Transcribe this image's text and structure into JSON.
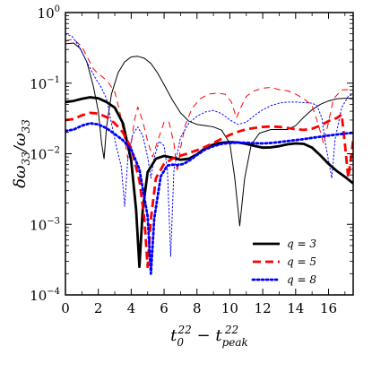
{
  "chart_data": {
    "type": "line",
    "xlabel": "t_0^{22} − t_{peak}^{22}",
    "ylabel": "δω_{33}/ω_{33}",
    "xlim": [
      0,
      17.5
    ],
    "ylim": [
      0.0001,
      1
    ],
    "yscale": "log",
    "xticks": [
      0,
      2,
      4,
      6,
      8,
      10,
      12,
      14,
      16
    ],
    "xtick_labels": [
      "0",
      "2",
      "4",
      "6",
      "8",
      "10",
      "12",
      "14",
      "16"
    ],
    "yticks": [
      0.0001,
      0.001,
      0.01,
      0.1,
      1
    ],
    "ytick_base": [
      "10",
      "10",
      "10",
      "10",
      "10"
    ],
    "ytick_exp": [
      "−4",
      "−3",
      "−2",
      "−1",
      "0"
    ],
    "grid": false,
    "legend": "lower-right",
    "series": [
      {
        "name": "q = 3",
        "color": "#000000",
        "dash": "solid",
        "width": "thick",
        "points": [
          [
            0,
            0.054
          ],
          [
            0.5,
            0.056
          ],
          [
            1,
            0.06
          ],
          [
            1.5,
            0.063
          ],
          [
            2,
            0.061
          ],
          [
            2.5,
            0.054
          ],
          [
            3,
            0.045
          ],
          [
            3.5,
            0.027
          ],
          [
            4,
            0.008
          ],
          [
            4.3,
            0.0016
          ],
          [
            4.5,
            0.00025
          ],
          [
            4.7,
            0.0016
          ],
          [
            5,
            0.0055
          ],
          [
            5.5,
            0.0085
          ],
          [
            6,
            0.0093
          ],
          [
            6.5,
            0.0088
          ],
          [
            7,
            0.0082
          ],
          [
            7.5,
            0.0085
          ],
          [
            8,
            0.0098
          ],
          [
            8.5,
            0.012
          ],
          [
            9,
            0.0135
          ],
          [
            9.5,
            0.0143
          ],
          [
            10,
            0.0146
          ],
          [
            10.5,
            0.0144
          ],
          [
            11,
            0.0138
          ],
          [
            11.5,
            0.0129
          ],
          [
            12,
            0.0122
          ],
          [
            12.5,
            0.0123
          ],
          [
            13,
            0.0128
          ],
          [
            13.5,
            0.0136
          ],
          [
            14,
            0.014
          ],
          [
            14.5,
            0.0138
          ],
          [
            15,
            0.0122
          ],
          [
            15.5,
            0.0095
          ],
          [
            16,
            0.0072
          ],
          [
            16.5,
            0.0057
          ],
          [
            17,
            0.0047
          ],
          [
            17.5,
            0.0038
          ]
        ]
      },
      {
        "name": "q = 5",
        "color": "#ff0000",
        "dash": "dashed",
        "width": "thick",
        "points": [
          [
            0,
            0.03
          ],
          [
            0.5,
            0.031
          ],
          [
            1,
            0.035
          ],
          [
            1.5,
            0.038
          ],
          [
            2,
            0.037
          ],
          [
            2.5,
            0.033
          ],
          [
            3,
            0.027
          ],
          [
            3.5,
            0.02
          ],
          [
            4,
            0.012
          ],
          [
            4.5,
            0.0042
          ],
          [
            4.8,
            0.0012
          ],
          [
            5,
            0.00025
          ],
          [
            5.2,
            0.0012
          ],
          [
            5.5,
            0.0045
          ],
          [
            6,
            0.0072
          ],
          [
            6.5,
            0.0085
          ],
          [
            7,
            0.0094
          ],
          [
            7.5,
            0.0102
          ],
          [
            8,
            0.0112
          ],
          [
            8.5,
            0.0125
          ],
          [
            9,
            0.0142
          ],
          [
            9.5,
            0.0163
          ],
          [
            10,
            0.0185
          ],
          [
            10.5,
            0.0205
          ],
          [
            11,
            0.0222
          ],
          [
            11.5,
            0.0232
          ],
          [
            12,
            0.024
          ],
          [
            12.5,
            0.0243
          ],
          [
            13,
            0.024
          ],
          [
            13.5,
            0.0232
          ],
          [
            14,
            0.0222
          ],
          [
            14.5,
            0.0218
          ],
          [
            15,
            0.0226
          ],
          [
            15.5,
            0.025
          ],
          [
            16,
            0.029
          ],
          [
            16.5,
            0.032
          ],
          [
            16.8,
            0.036
          ],
          [
            17,
            0.0135
          ],
          [
            17.2,
            0.0046
          ],
          [
            17.4,
            0.01
          ],
          [
            17.5,
            0.016
          ]
        ]
      },
      {
        "name": "q = 8",
        "color": "#0000ff",
        "dash": "dotted",
        "width": "thick",
        "points": [
          [
            0,
            0.021
          ],
          [
            0.5,
            0.022
          ],
          [
            1,
            0.025
          ],
          [
            1.5,
            0.027
          ],
          [
            2,
            0.026
          ],
          [
            2.5,
            0.023
          ],
          [
            3,
            0.019
          ],
          [
            3.5,
            0.0155
          ],
          [
            4,
            0.0115
          ],
          [
            4.5,
            0.006
          ],
          [
            5,
            0.0013
          ],
          [
            5.2,
            0.0002
          ],
          [
            5.4,
            0.0012
          ],
          [
            5.8,
            0.0048
          ],
          [
            6.2,
            0.0068
          ],
          [
            6.5,
            0.007
          ],
          [
            6.8,
            0.0069
          ],
          [
            7.2,
            0.0072
          ],
          [
            7.6,
            0.0082
          ],
          [
            8,
            0.0096
          ],
          [
            8.5,
            0.0115
          ],
          [
            9,
            0.0128
          ],
          [
            9.5,
            0.0138
          ],
          [
            10,
            0.0142
          ],
          [
            10.5,
            0.0144
          ],
          [
            11,
            0.0143
          ],
          [
            11.5,
            0.0141
          ],
          [
            12,
            0.014
          ],
          [
            12.5,
            0.0142
          ],
          [
            13,
            0.0146
          ],
          [
            13.5,
            0.0151
          ],
          [
            14,
            0.0156
          ],
          [
            14.5,
            0.0161
          ],
          [
            15,
            0.0168
          ],
          [
            15.5,
            0.0174
          ],
          [
            16,
            0.0181
          ],
          [
            16.5,
            0.0187
          ],
          [
            17,
            0.0193
          ],
          [
            17.5,
            0.0198
          ]
        ]
      },
      {
        "color": "#000000",
        "dash": "solid",
        "width": "thin",
        "points": [
          [
            0,
            0.36
          ],
          [
            0.5,
            0.37
          ],
          [
            0.9,
            0.31
          ],
          [
            1.3,
            0.2
          ],
          [
            1.7,
            0.09
          ],
          [
            2,
            0.04
          ],
          [
            2.2,
            0.014
          ],
          [
            2.35,
            0.0085
          ],
          [
            2.5,
            0.024
          ],
          [
            2.8,
            0.07
          ],
          [
            3.2,
            0.14
          ],
          [
            3.6,
            0.2
          ],
          [
            4,
            0.235
          ],
          [
            4.4,
            0.24
          ],
          [
            4.8,
            0.225
          ],
          [
            5.2,
            0.19
          ],
          [
            5.6,
            0.14
          ],
          [
            6,
            0.095
          ],
          [
            6.5,
            0.058
          ],
          [
            7,
            0.038
          ],
          [
            7.5,
            0.029
          ],
          [
            8,
            0.026
          ],
          [
            8.5,
            0.025
          ],
          [
            9,
            0.024
          ],
          [
            9.5,
            0.0215
          ],
          [
            10,
            0.014
          ],
          [
            10.3,
            0.0045
          ],
          [
            10.6,
            0.00095
          ],
          [
            10.9,
            0.0045
          ],
          [
            11.3,
            0.0135
          ],
          [
            11.8,
            0.0195
          ],
          [
            12.5,
            0.022
          ],
          [
            13,
            0.022
          ],
          [
            13.5,
            0.022
          ],
          [
            14,
            0.025
          ],
          [
            14.5,
            0.033
          ],
          [
            15,
            0.042
          ],
          [
            15.5,
            0.05
          ],
          [
            16,
            0.056
          ],
          [
            16.5,
            0.06
          ],
          [
            17,
            0.061
          ],
          [
            17.5,
            0.061
          ]
        ]
      },
      {
        "color": "#ff0000",
        "dash": "dashed",
        "width": "thin",
        "points": [
          [
            0,
            0.4
          ],
          [
            0.5,
            0.42
          ],
          [
            1,
            0.33
          ],
          [
            1.3,
            0.24
          ],
          [
            1.7,
            0.16
          ],
          [
            2,
            0.135
          ],
          [
            2.3,
            0.12
          ],
          [
            2.6,
            0.103
          ],
          [
            3,
            0.075
          ],
          [
            3.3,
            0.04
          ],
          [
            3.6,
            0.016
          ],
          [
            3.8,
            0.0085
          ],
          [
            4,
            0.014
          ],
          [
            4.2,
            0.03
          ],
          [
            4.4,
            0.046
          ],
          [
            4.7,
            0.029
          ],
          [
            5,
            0.015
          ],
          [
            5.3,
            0.009
          ],
          [
            5.6,
            0.015
          ],
          [
            6,
            0.028
          ],
          [
            6.3,
            0.028
          ],
          [
            6.6,
            0.014
          ],
          [
            6.8,
            0.0055
          ],
          [
            7,
            0.012
          ],
          [
            7.3,
            0.026
          ],
          [
            7.7,
            0.044
          ],
          [
            8.2,
            0.06
          ],
          [
            8.7,
            0.07
          ],
          [
            9.2,
            0.072
          ],
          [
            9.7,
            0.07
          ],
          [
            10.1,
            0.054
          ],
          [
            10.4,
            0.032
          ],
          [
            10.6,
            0.042
          ],
          [
            11,
            0.065
          ],
          [
            11.5,
            0.078
          ],
          [
            12,
            0.085
          ],
          [
            12.5,
            0.087
          ],
          [
            13,
            0.081
          ],
          [
            13.5,
            0.078
          ],
          [
            14,
            0.07
          ],
          [
            14.5,
            0.06
          ],
          [
            15,
            0.048
          ],
          [
            15.4,
            0.025
          ],
          [
            15.7,
            0.014
          ],
          [
            16,
            0.028
          ],
          [
            16.3,
            0.06
          ],
          [
            16.8,
            0.08
          ],
          [
            17.2,
            0.081
          ],
          [
            17.5,
            0.078
          ]
        ]
      },
      {
        "color": "#0000ff",
        "dash": "dotted",
        "width": "thin",
        "points": [
          [
            0,
            0.5
          ],
          [
            0.4,
            0.46
          ],
          [
            0.8,
            0.34
          ],
          [
            1.3,
            0.2
          ],
          [
            1.8,
            0.12
          ],
          [
            2.2,
            0.085
          ],
          [
            2.5,
            0.06
          ],
          [
            2.8,
            0.027
          ],
          [
            3.1,
            0.0125
          ],
          [
            3.4,
            0.0065
          ],
          [
            3.6,
            0.0018
          ],
          [
            3.8,
            0.009
          ],
          [
            4.1,
            0.019
          ],
          [
            4.4,
            0.024
          ],
          [
            4.7,
            0.018
          ],
          [
            5,
            0.009
          ],
          [
            5.2,
            0.0045
          ],
          [
            5.4,
            0.0088
          ],
          [
            5.7,
            0.015
          ],
          [
            6,
            0.013
          ],
          [
            6.2,
            0.006
          ],
          [
            6.4,
            0.00035
          ],
          [
            6.6,
            0.006
          ],
          [
            7,
            0.017
          ],
          [
            7.5,
            0.027
          ],
          [
            8,
            0.034
          ],
          [
            8.5,
            0.039
          ],
          [
            9,
            0.041
          ],
          [
            9.5,
            0.037
          ],
          [
            10,
            0.03
          ],
          [
            10.5,
            0.026
          ],
          [
            11,
            0.028
          ],
          [
            11.5,
            0.035
          ],
          [
            12,
            0.042
          ],
          [
            12.5,
            0.048
          ],
          [
            13,
            0.052
          ],
          [
            13.5,
            0.054
          ],
          [
            14,
            0.054
          ],
          [
            14.5,
            0.053
          ],
          [
            15,
            0.052
          ],
          [
            15.3,
            0.048
          ],
          [
            15.6,
            0.032
          ],
          [
            15.8,
            0.0145
          ],
          [
            16,
            0.008
          ],
          [
            16.2,
            0.0045
          ],
          [
            16.4,
            0.016
          ],
          [
            16.8,
            0.045
          ],
          [
            17.2,
            0.065
          ],
          [
            17.5,
            0.07
          ]
        ]
      }
    ]
  }
}
